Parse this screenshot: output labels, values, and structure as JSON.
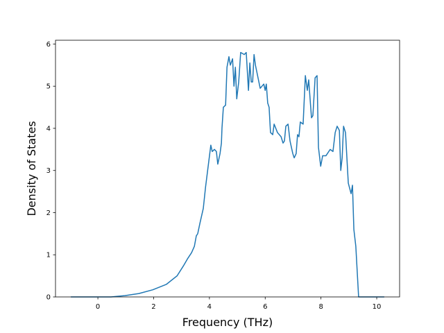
{
  "chart_data": {
    "type": "line",
    "xlabel": "Frequency (THz)",
    "ylabel": "Density of States",
    "xlim": [
      -1.52,
      10.82
    ],
    "ylim": [
      0,
      6.09
    ],
    "xticks": [
      0,
      2,
      4,
      6,
      8,
      10
    ],
    "yticks": [
      0,
      1,
      2,
      3,
      4,
      5,
      6
    ],
    "x": [
      -0.97,
      0.47,
      0.97,
      1.47,
      1.97,
      2.46,
      2.84,
      3.08,
      3.21,
      3.36,
      3.46,
      3.53,
      3.58,
      3.66,
      3.78,
      3.86,
      4.05,
      4.1,
      4.18,
      4.25,
      4.3,
      4.38,
      4.43,
      4.45,
      4.5,
      4.58,
      4.63,
      4.7,
      4.75,
      4.83,
      4.88,
      4.93,
      4.98,
      5.05,
      5.12,
      5.25,
      5.32,
      5.4,
      5.45,
      5.5,
      5.55,
      5.6,
      5.65,
      5.82,
      5.95,
      6.0,
      6.04,
      6.09,
      6.14,
      6.19,
      6.27,
      6.32,
      6.44,
      6.57,
      6.64,
      6.69,
      6.74,
      6.82,
      6.89,
      6.99,
      7.04,
      7.11,
      7.16,
      7.21,
      7.26,
      7.36,
      7.44,
      7.51,
      7.56,
      7.66,
      7.71,
      7.79,
      7.86,
      7.91,
      7.99,
      8.06,
      8.18,
      8.33,
      8.43,
      8.51,
      8.58,
      8.66,
      8.71,
      8.76,
      8.81,
      8.88,
      8.98,
      9.08,
      9.13,
      9.18,
      9.25,
      9.35,
      10.27
    ],
    "series": [
      {
        "color": "#1f77b4",
        "values": [
          0,
          0,
          0.03,
          0.08,
          0.17,
          0.3,
          0.5,
          0.75,
          0.9,
          1.05,
          1.2,
          1.45,
          1.5,
          1.75,
          2.1,
          2.6,
          3.6,
          3.45,
          3.5,
          3.45,
          3.15,
          3.4,
          3.65,
          4.0,
          4.5,
          4.55,
          5.45,
          5.7,
          5.5,
          5.65,
          5.0,
          5.45,
          4.7,
          5.1,
          5.8,
          5.75,
          5.8,
          4.9,
          5.55,
          5.1,
          5.1,
          5.75,
          5.5,
          4.95,
          5.05,
          4.9,
          5.05,
          4.6,
          4.5,
          3.9,
          3.85,
          4.1,
          3.9,
          3.8,
          3.65,
          3.7,
          4.05,
          4.1,
          3.7,
          3.4,
          3.3,
          3.4,
          3.85,
          3.8,
          4.15,
          4.1,
          5.25,
          4.9,
          5.15,
          4.25,
          4.3,
          5.2,
          5.25,
          3.55,
          3.1,
          3.35,
          3.35,
          3.5,
          3.45,
          3.9,
          4.05,
          3.95,
          3.0,
          3.3,
          4.05,
          3.9,
          2.7,
          2.45,
          2.65,
          1.6,
          1.2,
          0,
          0
        ]
      }
    ]
  }
}
